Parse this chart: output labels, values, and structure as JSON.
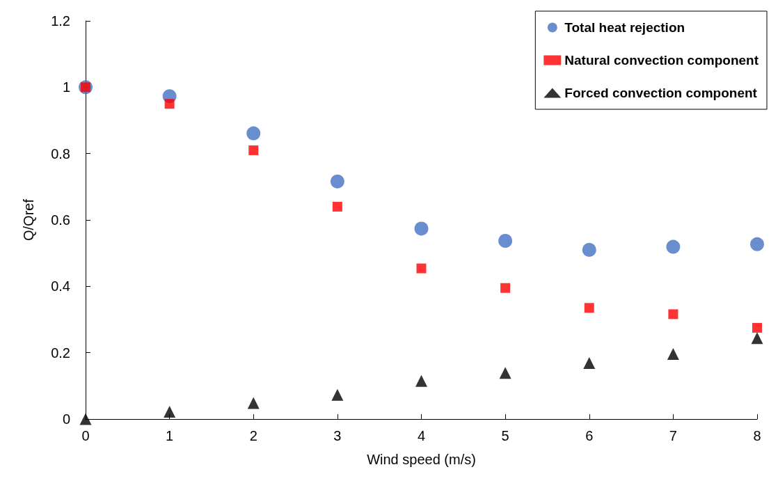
{
  "chart_data": {
    "type": "scatter",
    "xlabel": "Wind speed (m/s)",
    "ylabel": "Q/Qref",
    "x": [
      0,
      1,
      2,
      3,
      4,
      5,
      6,
      7,
      8
    ],
    "series": [
      {
        "name": "Total heat rejection",
        "color": "#4472c4",
        "marker": "circle",
        "values": [
          1.0,
          0.973,
          0.861,
          0.716,
          0.574,
          0.537,
          0.51,
          0.519,
          0.527
        ]
      },
      {
        "name": "Natural convection component",
        "color": "#ff0000",
        "marker": "square",
        "values": [
          1.0,
          0.95,
          0.81,
          0.64,
          0.454,
          0.395,
          0.335,
          0.316,
          0.275
        ]
      },
      {
        "name": "Forced convection component",
        "color": "#000000",
        "marker": "triangle",
        "values": [
          0,
          0.022,
          0.048,
          0.073,
          0.115,
          0.139,
          0.169,
          0.196,
          0.244
        ]
      }
    ],
    "xlim": [
      0,
      8
    ],
    "xticks": [
      0,
      1,
      2,
      3,
      4,
      5,
      6,
      7,
      8
    ],
    "ylim": [
      0,
      1.2
    ],
    "yticks": [
      0,
      0.2,
      0.4,
      0.6,
      0.8,
      1,
      1.2
    ],
    "grid": false,
    "legend": "top right"
  }
}
